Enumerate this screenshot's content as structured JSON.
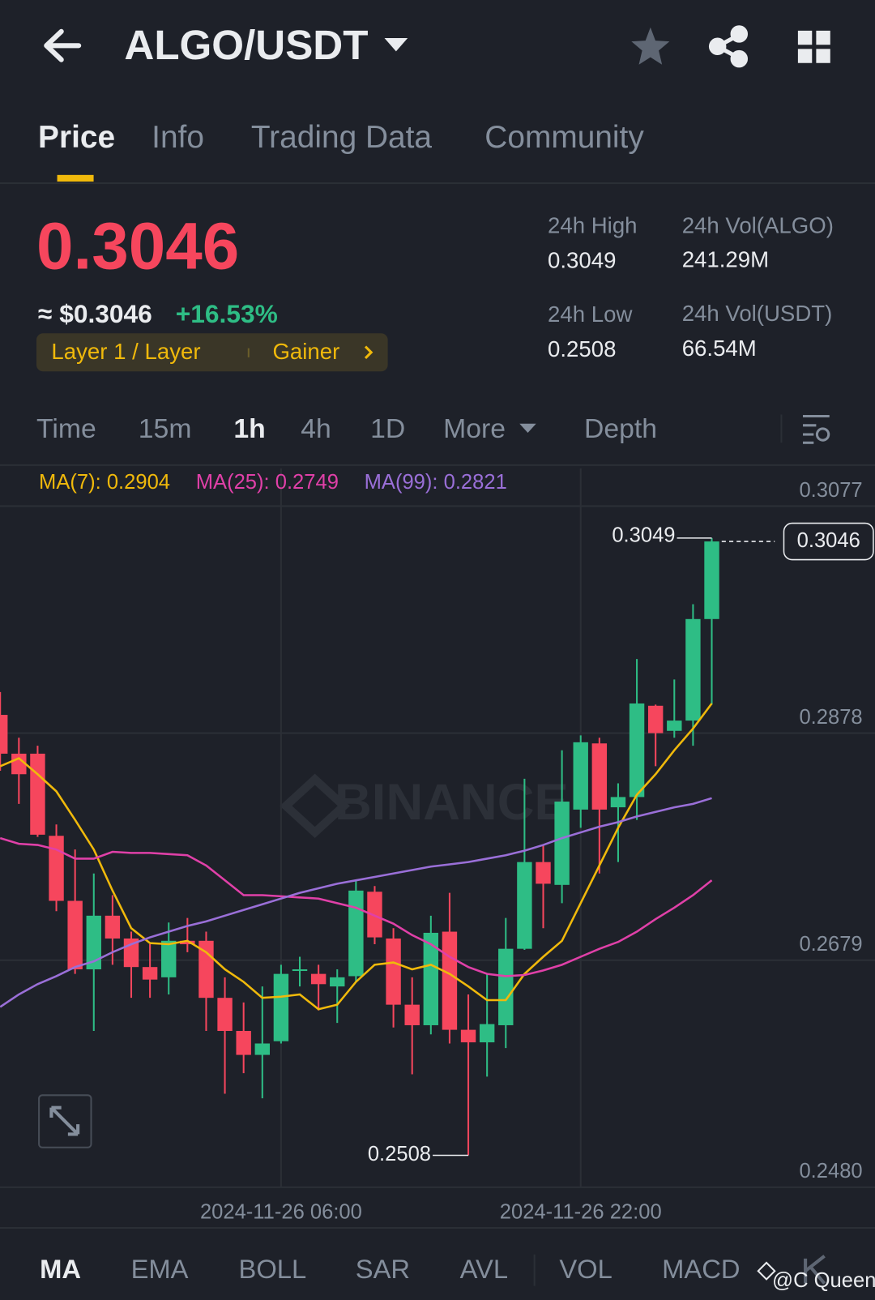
{
  "header": {
    "title": "ALGO/USDT"
  },
  "tabs": [
    "Price",
    "Info",
    "Trading Data",
    "Community"
  ],
  "ticker": {
    "price": "0.3046",
    "usd_price": "≈ $0.3046",
    "change": "+16.53%",
    "tags": [
      "Layer 1 / Layer",
      "Gainer"
    ]
  },
  "stats": [
    {
      "label": "24h High",
      "value": "0.3049"
    },
    {
      "label": "24h Vol(ALGO)",
      "value": "241.29M"
    },
    {
      "label": "24h Low",
      "value": "0.2508"
    },
    {
      "label": "24h Vol(USDT)",
      "value": "66.54M"
    }
  ],
  "intervals": [
    "Time",
    "15m",
    "1h",
    "4h",
    "1D",
    "More",
    "Depth"
  ],
  "indicators": [
    "MA",
    "EMA",
    "BOLL",
    "SAR",
    "AVL",
    "VOL",
    "MACD"
  ],
  "watermark": "BINANCE",
  "credit": "@C Queen",
  "chart_data": {
    "type": "candlestick",
    "categories": [
      null,
      null,
      null,
      null,
      null,
      null,
      null,
      null,
      null,
      null,
      null,
      null,
      null,
      null,
      null,
      "2024-11-26 06:00",
      null,
      null,
      null,
      null,
      null,
      null,
      null,
      null,
      null,
      null,
      null,
      null,
      null,
      null,
      null,
      "2024-11-26 22:00",
      null,
      null,
      null,
      null,
      null,
      null,
      null
    ],
    "open": [
      0.2894,
      0.286,
      0.286,
      0.2788,
      0.2731,
      0.2671,
      0.2718,
      0.2698,
      0.2673,
      0.2664,
      0.2696,
      0.2696,
      0.2646,
      0.2617,
      0.2596,
      0.2608,
      0.267,
      0.2667,
      0.2656,
      0.2665,
      0.2739,
      0.2698,
      0.264,
      0.2622,
      0.2704,
      0.2618,
      0.2607,
      0.2622,
      0.2689,
      0.2765,
      0.2745,
      0.2811,
      0.2869,
      0.2813,
      0.2822,
      0.2902,
      0.288,
      0.2889,
      0.2978
    ],
    "high": [
      0.2914,
      0.2874,
      0.2867,
      0.2798,
      0.2776,
      0.2755,
      0.2736,
      0.2704,
      0.2693,
      0.2712,
      0.2716,
      0.2704,
      0.2664,
      0.2642,
      0.2656,
      0.2675,
      0.2682,
      0.2675,
      0.2671,
      0.2749,
      0.2744,
      0.2707,
      0.2664,
      0.2718,
      0.2738,
      0.2649,
      0.2667,
      0.2716,
      0.2838,
      0.278,
      0.2863,
      0.2876,
      0.2874,
      0.2834,
      0.2943,
      0.2903,
      0.2925,
      0.2991,
      0.3049
    ],
    "low": [
      0.2845,
      0.2816,
      0.2787,
      0.2722,
      0.2667,
      0.2617,
      0.2675,
      0.2646,
      0.2646,
      0.2649,
      0.2686,
      0.2617,
      0.2562,
      0.258,
      0.2558,
      0.2606,
      0.2656,
      0.2635,
      0.2624,
      0.266,
      0.2693,
      0.262,
      0.2579,
      0.2614,
      0.2606,
      0.2508,
      0.2577,
      0.2602,
      0.2688,
      0.2707,
      0.2729,
      0.2795,
      0.2755,
      0.2765,
      0.2802,
      0.2849,
      0.2874,
      0.2867,
      0.2903
    ],
    "close": [
      0.286,
      0.2842,
      0.2789,
      0.2731,
      0.2671,
      0.2718,
      0.2698,
      0.2673,
      0.2662,
      0.2696,
      0.2693,
      0.2646,
      0.2617,
      0.2596,
      0.2606,
      0.2667,
      0.2671,
      0.2658,
      0.2664,
      0.274,
      0.2699,
      0.264,
      0.2622,
      0.2703,
      0.2618,
      0.2607,
      0.2623,
      0.2689,
      0.2765,
      0.2746,
      0.2818,
      0.287,
      0.2811,
      0.2822,
      0.2904,
      0.2878,
      0.2889,
      0.2978,
      0.3046
    ],
    "up_color": "#2ebd85",
    "down_color": "#f6465d",
    "series": [
      {
        "name": "MA(7): 0.2904",
        "color": "#f0b90b",
        "values": [
          0.2849,
          0.2856,
          0.2842,
          0.2827,
          0.2802,
          0.2776,
          0.274,
          0.2707,
          0.2694,
          0.2693,
          0.2696,
          0.2686,
          0.2671,
          0.266,
          0.2646,
          0.2647,
          0.2649,
          0.2636,
          0.264,
          0.266,
          0.2675,
          0.2677,
          0.2671,
          0.2675,
          0.2667,
          0.2656,
          0.2644,
          0.2644,
          0.2667,
          0.2682,
          0.2696,
          0.2729,
          0.2762,
          0.2795,
          0.2824,
          0.2842,
          0.2863,
          0.2882,
          0.2904
        ]
      },
      {
        "name": "MA(25): 0.2749",
        "color": "#e040a8",
        "values": [
          0.2786,
          0.2781,
          0.278,
          0.2776,
          0.2768,
          0.2768,
          0.2774,
          0.2773,
          0.2773,
          0.2772,
          0.2771,
          0.2762,
          0.2749,
          0.2736,
          0.2736,
          0.2735,
          0.2734,
          0.2733,
          0.2729,
          0.2725,
          0.2718,
          0.2711,
          0.2701,
          0.2693,
          0.2682,
          0.2673,
          0.2667,
          0.2665,
          0.2666,
          0.267,
          0.2675,
          0.2682,
          0.2689,
          0.2695,
          0.2704,
          0.2715,
          0.2725,
          0.2736,
          0.2749
        ]
      },
      {
        "name": "MA(99): 0.2821",
        "color": "#9a6fd8",
        "values": [
          0.2638,
          0.2649,
          0.2658,
          0.2665,
          0.2673,
          0.2678,
          0.2686,
          0.2693,
          0.2699,
          0.2704,
          0.2709,
          0.2713,
          0.2718,
          0.2723,
          0.2728,
          0.2733,
          0.2738,
          0.2742,
          0.2746,
          0.2749,
          0.2752,
          0.2755,
          0.2758,
          0.2761,
          0.2763,
          0.2765,
          0.2768,
          0.2771,
          0.2775,
          0.278,
          0.2786,
          0.2791,
          0.2796,
          0.28,
          0.2805,
          0.2809,
          0.2813,
          0.2816,
          0.2821
        ]
      }
    ],
    "ylim": [
      0.248,
      0.311
    ],
    "yticks": [
      0.3077,
      0.2878,
      0.2679,
      {
        "value": 0.248,
        "label": "0.2480"
      }
    ],
    "annotations": {
      "high": 0.3049,
      "low": 0.2508,
      "last": 0.3046
    }
  }
}
